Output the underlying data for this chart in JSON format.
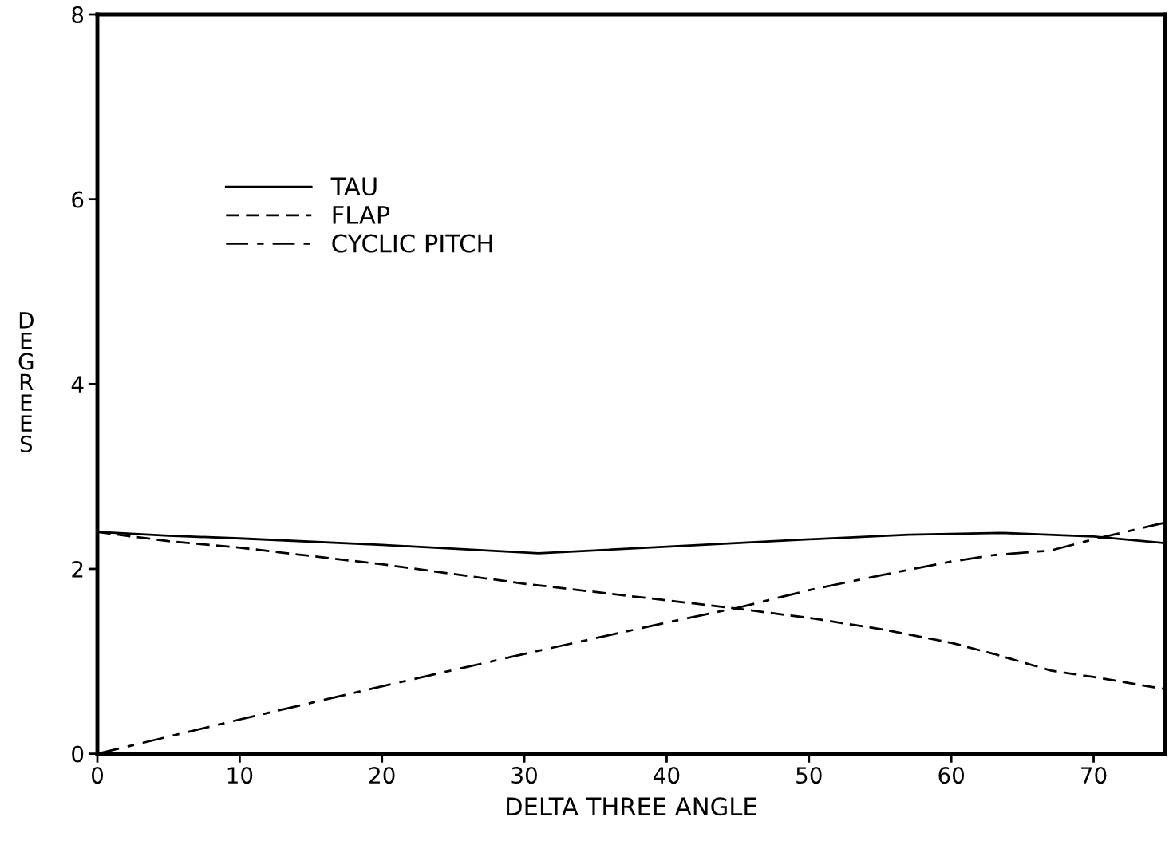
{
  "chart_data": {
    "type": "line",
    "xlabel": "DELTA THREE ANGLE",
    "ylabel": "DEGREES",
    "xlim": [
      0,
      75
    ],
    "ylim": [
      0,
      8
    ],
    "xticks": [
      0,
      10,
      20,
      30,
      40,
      50,
      60,
      70
    ],
    "yticks": [
      0,
      2,
      4,
      6,
      8
    ],
    "grid": false,
    "legend": "top left",
    "marker": "none",
    "series": [
      {
        "name": "TAU",
        "color": "#000000",
        "line_style": "solid",
        "x": [
          0,
          5,
          10,
          20,
          31,
          40,
          50,
          57,
          63.5,
          70,
          75
        ],
        "values": [
          2.4,
          2.36,
          2.33,
          2.26,
          2.17,
          2.24,
          2.32,
          2.37,
          2.39,
          2.35,
          2.28
        ]
      },
      {
        "name": "FLAP",
        "color": "#000000",
        "line_style": "dashed",
        "x": [
          0,
          5,
          10,
          20,
          30,
          40,
          45,
          50,
          55,
          60,
          63,
          67,
          70,
          75
        ],
        "values": [
          2.4,
          2.3,
          2.23,
          2.05,
          1.84,
          1.66,
          1.57,
          1.47,
          1.35,
          1.2,
          1.08,
          0.9,
          0.83,
          0.7
        ]
      },
      {
        "name": "CYCLIC PITCH",
        "color": "#000000",
        "line_style": "dashdot",
        "x": [
          0,
          10,
          20,
          30,
          40,
          45,
          50,
          55,
          60,
          63,
          67,
          70,
          75
        ],
        "values": [
          0,
          0.37,
          0.73,
          1.08,
          1.42,
          1.58,
          1.77,
          1.93,
          2.08,
          2.15,
          2.2,
          2.32,
          2.5
        ]
      }
    ]
  }
}
